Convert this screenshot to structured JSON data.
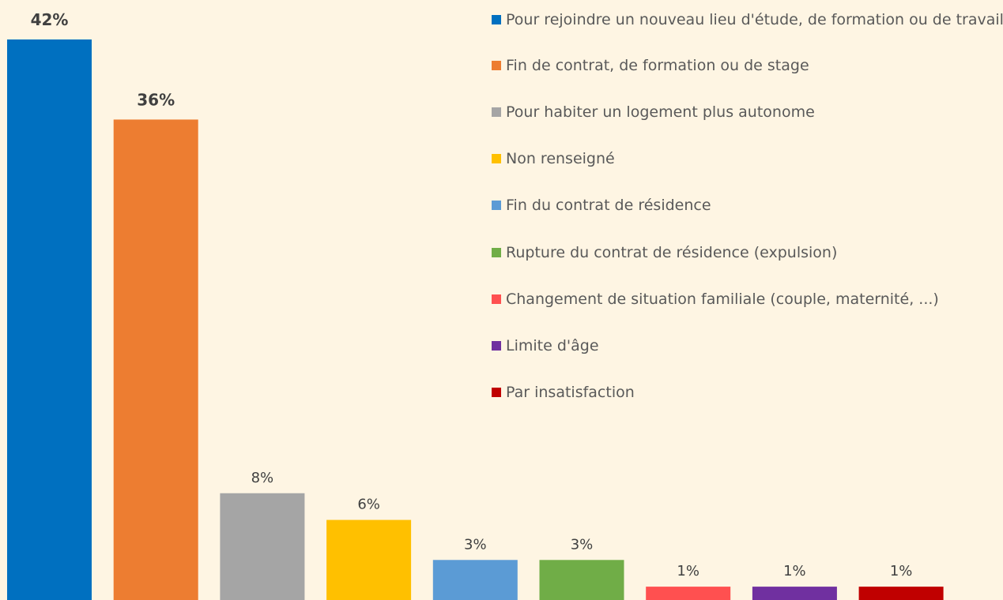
{
  "chart_data": {
    "type": "bar",
    "categories": [
      "Pour rejoindre un nouveau lieu d'étude, de formation ou de travail",
      "Fin de contrat, de formation ou de stage",
      "Pour habiter un logement plus autonome",
      "Non renseigné",
      "Fin du contrat de résidence",
      "Rupture du contrat de résidence (expulsion)",
      "Changement de situation familiale (couple, maternité, ...)",
      "Limite d'âge",
      "Par insatisfaction"
    ],
    "values": [
      42,
      36,
      8,
      6,
      3,
      3,
      1,
      1,
      1
    ],
    "value_labels": [
      "42%",
      "36%",
      "8%",
      "6%",
      "3%",
      "3%",
      "1%",
      "1%",
      "1%"
    ],
    "colors": [
      "#0070c0",
      "#ed7d31",
      "#a5a5a5",
      "#ffc000",
      "#5b9bd5",
      "#70ad47",
      "#ff5050",
      "#7030a0",
      "#c00000"
    ],
    "legend": "top-right"
  }
}
